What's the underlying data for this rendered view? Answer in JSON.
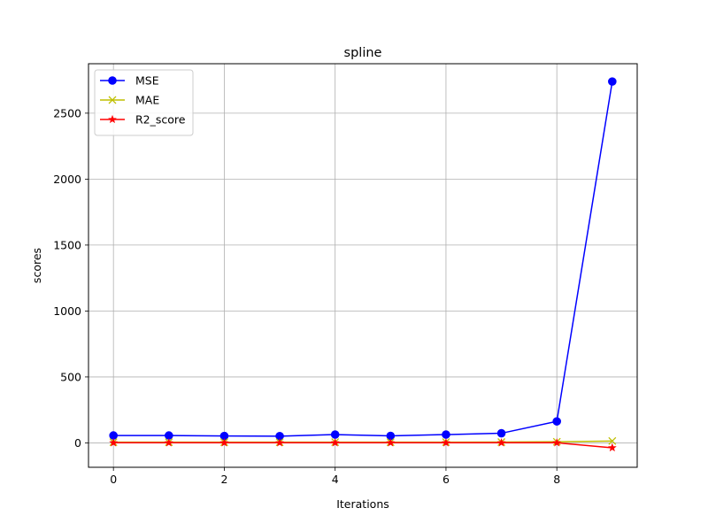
{
  "chart_data": {
    "type": "line",
    "title": "spline",
    "xlabel": "Iterations",
    "ylabel": "scores",
    "xlim": [
      -0.45,
      9.45
    ],
    "ylim": [
      -185,
      2875
    ],
    "xticks": [
      0,
      2,
      4,
      6,
      8
    ],
    "yticks": [
      0,
      500,
      1000,
      1500,
      2000,
      2500
    ],
    "grid": true,
    "legend_position": "top-left",
    "x": [
      0,
      1,
      2,
      3,
      4,
      5,
      6,
      7,
      8,
      9
    ],
    "series": [
      {
        "name": "MSE",
        "color": "#0000ff",
        "marker": "circle",
        "values": [
          56,
          56,
          52,
          51,
          63,
          53,
          63,
          73,
          163,
          2740
        ]
      },
      {
        "name": "MAE",
        "color": "#bfbf00",
        "marker": "x",
        "values": [
          5.5,
          5.5,
          5.3,
          5.2,
          5.8,
          5.3,
          5.8,
          6.2,
          8.5,
          14
        ]
      },
      {
        "name": "R2_score",
        "color": "#ff0000",
        "marker": "star",
        "values": [
          0.95,
          0.95,
          0.95,
          0.95,
          0.94,
          0.95,
          0.94,
          0.93,
          0.85,
          -37
        ]
      }
    ]
  }
}
